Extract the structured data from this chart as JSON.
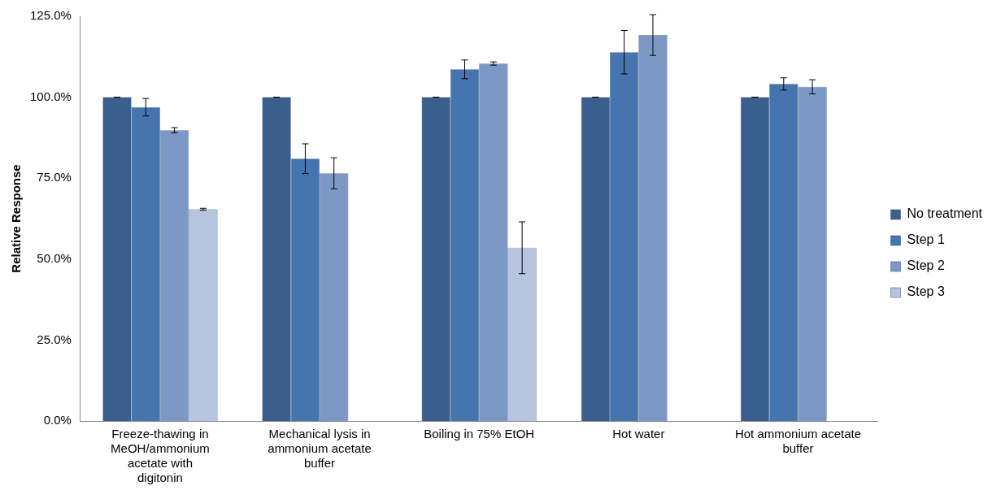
{
  "chart_data": {
    "type": "bar",
    "ylabel": "Relative Response",
    "categories": [
      "Freeze-thawing in MeOH/ammonium acetate with digitonin",
      "Mechanical lysis in ammonium acetate buffer",
      "Boiling in 75% EtOH",
      "Hot water",
      "Hot ammonium acetate buffer"
    ],
    "series": [
      {
        "name": "No treatment",
        "color": "#3a5f8f",
        "values": [
          100,
          100,
          100,
          100,
          100
        ],
        "errors": [
          0,
          0,
          0,
          0,
          0
        ]
      },
      {
        "name": "Step 1",
        "color": "#4674ae",
        "values": [
          96.9,
          81,
          108.6,
          113.9,
          104.1
        ],
        "errors": [
          2.7,
          4.6,
          2.9,
          6.7,
          1.9
        ]
      },
      {
        "name": "Step 2",
        "color": "#7c99c6",
        "values": [
          89.8,
          76.5,
          110.4,
          119.2,
          103.2
        ],
        "errors": [
          0.8,
          4.8,
          0.5,
          6.3,
          2.2
        ]
      },
      {
        "name": "Step 3",
        "color": "#b7c4de",
        "values": [
          65.4,
          null,
          53.5,
          null,
          null
        ],
        "errors": [
          0.3,
          null,
          8,
          null,
          null
        ]
      }
    ],
    "ylim": [
      0,
      125
    ],
    "yticks": [
      {
        "value": 0,
        "label": "0.0%"
      },
      {
        "value": 25,
        "label": "25.0%"
      },
      {
        "value": 50,
        "label": "50.0%"
      },
      {
        "value": 75,
        "label": "75.0%"
      },
      {
        "value": 100,
        "label": "100.0%"
      },
      {
        "value": 125,
        "label": "125.0%"
      }
    ],
    "grid": false,
    "legend": "right"
  }
}
